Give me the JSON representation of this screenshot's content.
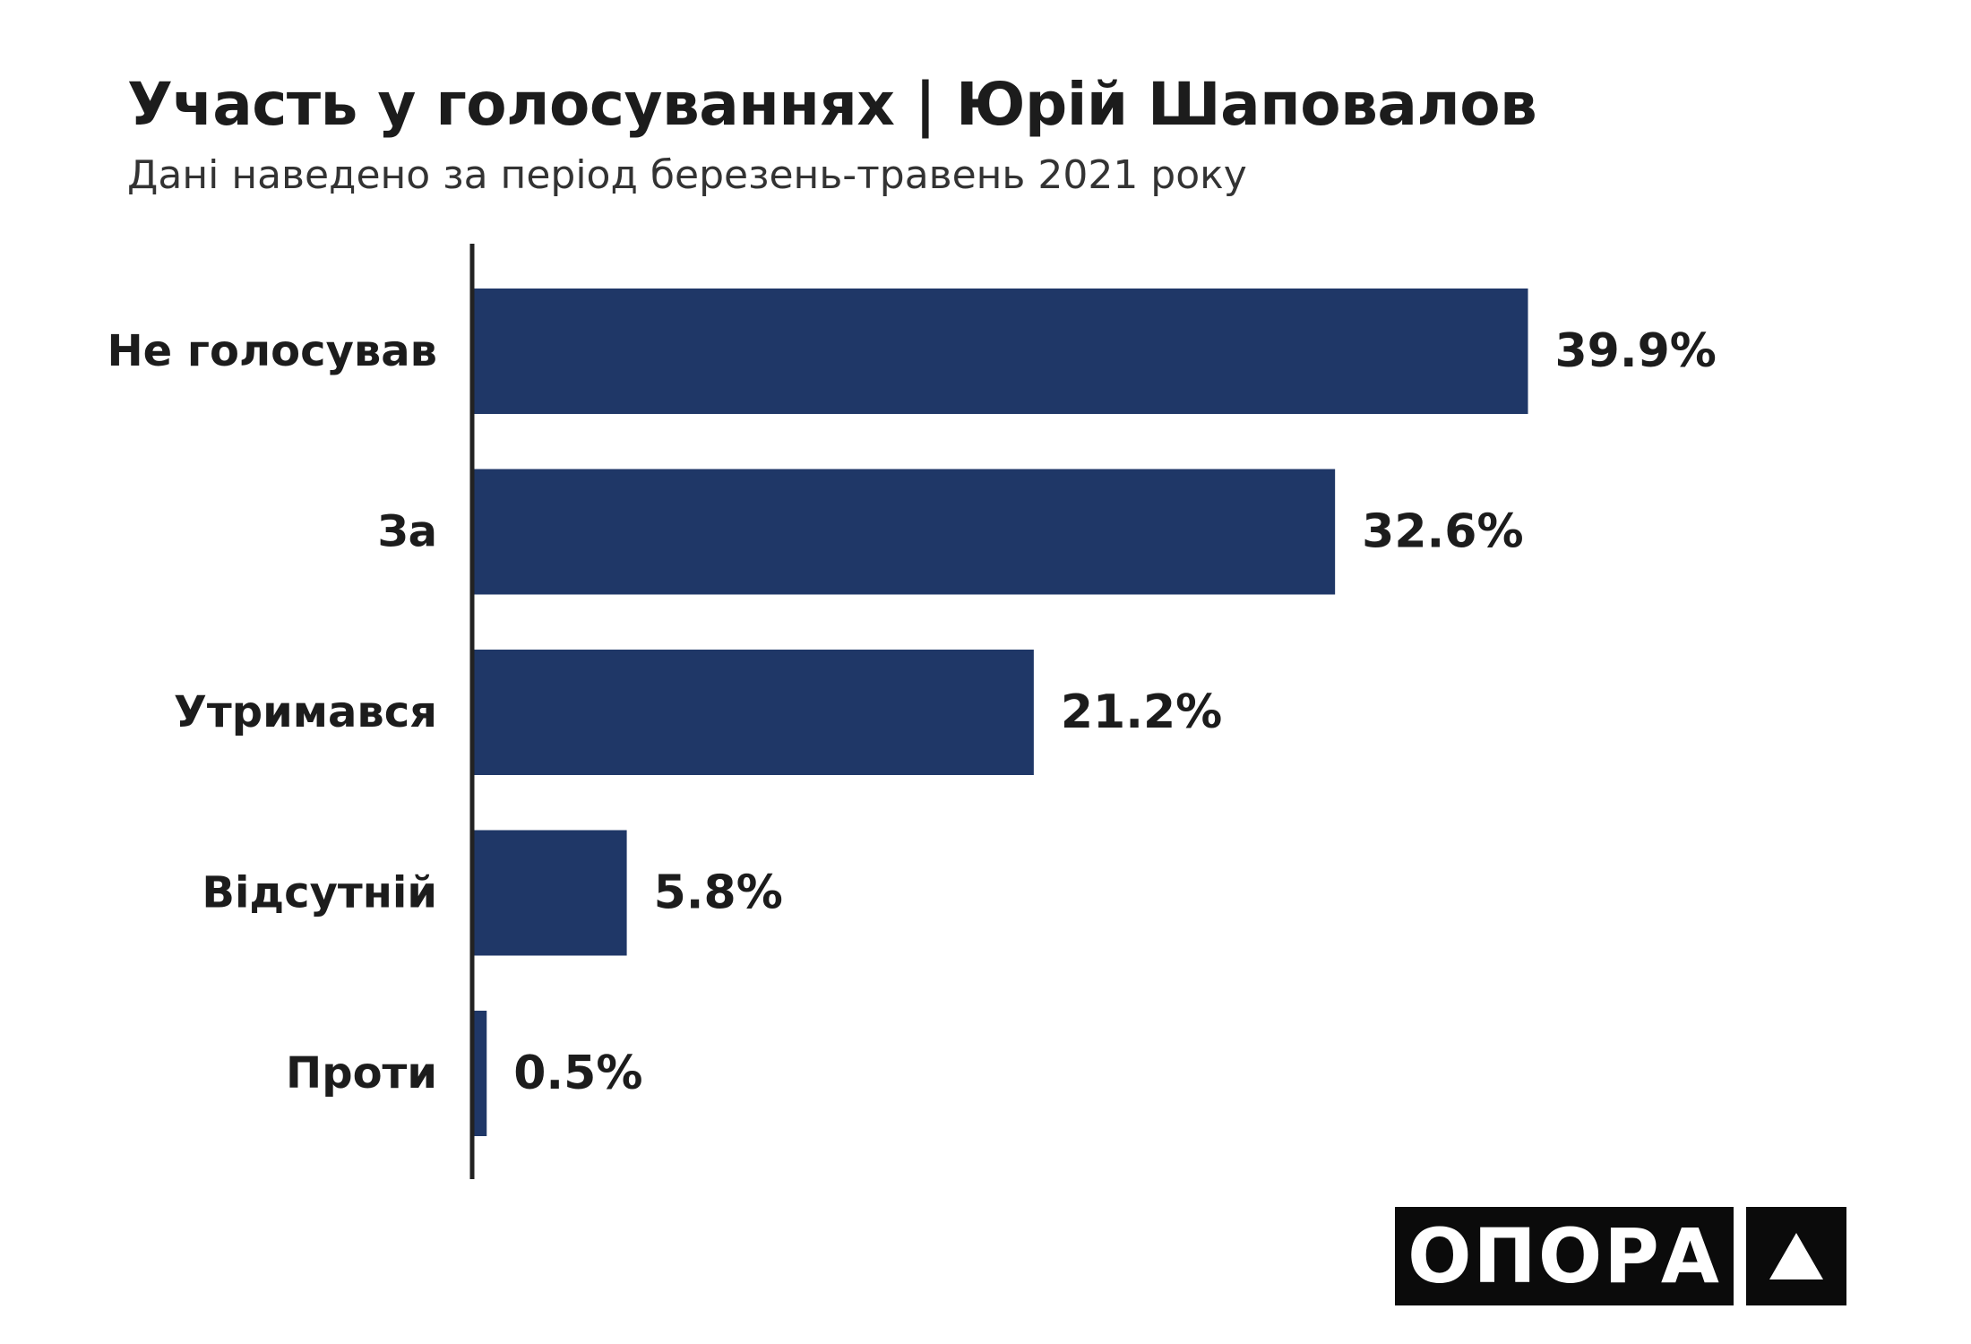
{
  "title": "Участь у голосуваннях | Юрій Шаповалов",
  "subtitle": "Дані наведено за період березень-травень 2021 року",
  "brand": {
    "logo_text": "ОПОРА",
    "logo_icon": "triangle-icon",
    "color": "#0b0b0b"
  },
  "colors": {
    "bar": "#1f3767",
    "axis": "#222222"
  },
  "chart_data": {
    "type": "bar",
    "orientation": "horizontal",
    "categories": [
      "Не голосував",
      "За",
      "Утримався",
      "Відсутній",
      "Проти"
    ],
    "values": [
      39.9,
      32.6,
      21.2,
      5.8,
      0.5
    ],
    "value_labels": [
      "39.9%",
      "32.6%",
      "21.2%",
      "5.8%",
      "0.5%"
    ],
    "unit": "%",
    "xlabel": "",
    "ylabel": "",
    "xlim": [
      0,
      40
    ],
    "grid": false,
    "legend": "none"
  }
}
